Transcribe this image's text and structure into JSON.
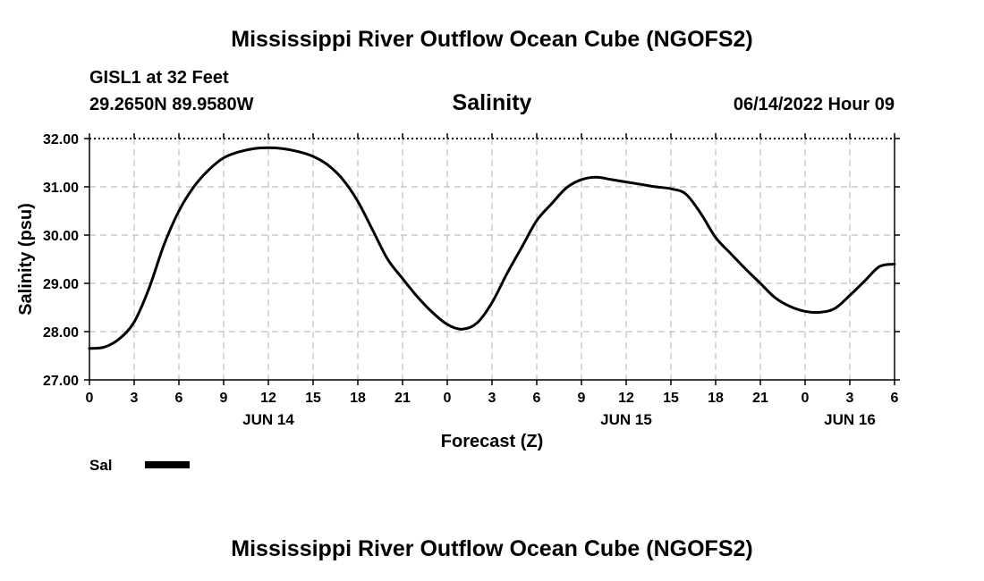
{
  "page": {
    "title": "Mississippi River Outflow Ocean Cube (NGOFS2)",
    "footer_title": "Mississippi River Outflow Ocean Cube (NGOFS2)"
  },
  "header": {
    "station": "GISL1 at 32 Feet",
    "coordinates": "29.2650N  89.9580W",
    "timestamp": "06/14/2022 Hour 09"
  },
  "chart_data": {
    "type": "line",
    "title": "Salinity",
    "xlabel": "Forecast (Z)",
    "ylabel": "Salinity (psu)",
    "ylim": [
      27.0,
      32.0
    ],
    "xlim": [
      0,
      54
    ],
    "y_ticks": [
      "27.00",
      "28.00",
      "29.00",
      "30.00",
      "31.00",
      "32.00"
    ],
    "x_ticks": [
      {
        "h": 0,
        "label": "0"
      },
      {
        "h": 3,
        "label": "3"
      },
      {
        "h": 6,
        "label": "6"
      },
      {
        "h": 9,
        "label": "9"
      },
      {
        "h": 12,
        "label": "12"
      },
      {
        "h": 15,
        "label": "15"
      },
      {
        "h": 18,
        "label": "18"
      },
      {
        "h": 21,
        "label": "21"
      },
      {
        "h": 24,
        "label": "0"
      },
      {
        "h": 27,
        "label": "3"
      },
      {
        "h": 30,
        "label": "6"
      },
      {
        "h": 33,
        "label": "9"
      },
      {
        "h": 36,
        "label": "12"
      },
      {
        "h": 39,
        "label": "15"
      },
      {
        "h": 42,
        "label": "18"
      },
      {
        "h": 45,
        "label": "21"
      },
      {
        "h": 48,
        "label": "0"
      },
      {
        "h": 51,
        "label": "3"
      },
      {
        "h": 54,
        "label": "6"
      }
    ],
    "date_labels": [
      {
        "h": 12,
        "label": "JUN 14"
      },
      {
        "h": 36,
        "label": "JUN 15"
      },
      {
        "h": 51,
        "label": "JUN 16"
      }
    ],
    "grid": true,
    "legend": {
      "position": "bottom-left",
      "label": "Sal"
    },
    "series": [
      {
        "name": "Sal",
        "color": "#000000",
        "x": [
          0,
          1,
          2,
          3,
          4,
          5,
          6,
          7,
          8,
          9,
          10,
          11,
          12,
          13,
          14,
          15,
          16,
          17,
          18,
          19,
          20,
          21,
          22,
          23,
          24,
          25,
          26,
          27,
          28,
          29,
          30,
          31,
          32,
          33,
          34,
          35,
          36,
          37,
          38,
          39,
          40,
          41,
          42,
          43,
          44,
          45,
          46,
          47,
          48,
          49,
          50,
          51,
          52,
          53,
          54
        ],
        "values": [
          27.65,
          27.68,
          27.85,
          28.2,
          28.9,
          29.8,
          30.5,
          31.0,
          31.35,
          31.6,
          31.72,
          31.79,
          31.81,
          31.79,
          31.73,
          31.63,
          31.45,
          31.15,
          30.7,
          30.1,
          29.5,
          29.1,
          28.72,
          28.4,
          28.15,
          28.05,
          28.18,
          28.6,
          29.2,
          29.75,
          30.3,
          30.65,
          30.98,
          31.15,
          31.2,
          31.15,
          31.1,
          31.05,
          31.0,
          30.96,
          30.85,
          30.45,
          29.95,
          29.62,
          29.3,
          29.0,
          28.7,
          28.52,
          28.42,
          28.4,
          28.48,
          28.75,
          29.05,
          29.35,
          29.4
        ]
      }
    ]
  }
}
